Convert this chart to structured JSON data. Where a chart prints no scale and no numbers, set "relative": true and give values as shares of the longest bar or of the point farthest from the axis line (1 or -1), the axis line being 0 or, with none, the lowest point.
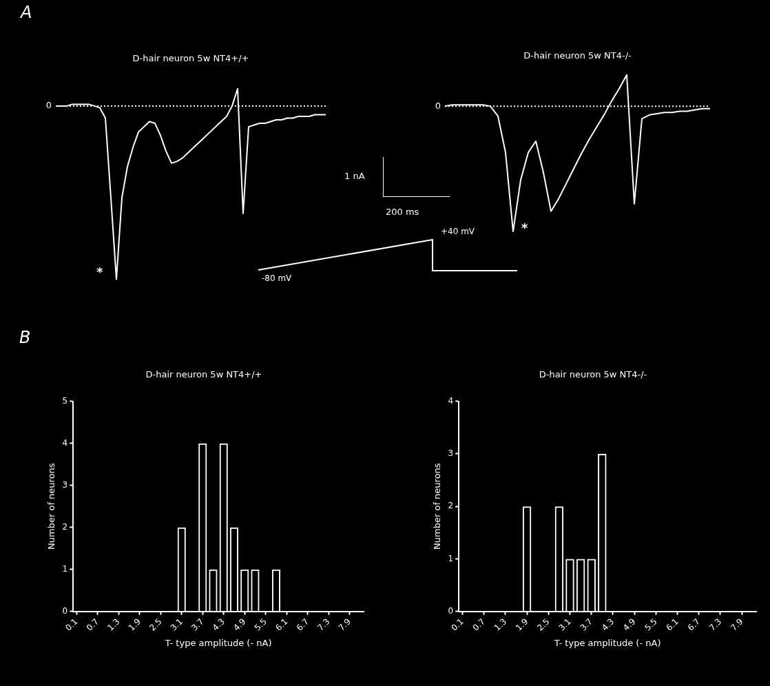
{
  "chart_data": [
    {
      "type": "line",
      "title": "D-hair neuron 5w NT4+/+",
      "relative": true,
      "marker": "none",
      "line_style": "solid",
      "color": "#ffffff",
      "categories": [
        null,
        null,
        null,
        null,
        null,
        null,
        null,
        null,
        null,
        null,
        null,
        null,
        null,
        null,
        null,
        null,
        null,
        null,
        null,
        null,
        null,
        null,
        null,
        null,
        null,
        null,
        null,
        null,
        null,
        null,
        null,
        null,
        null,
        null,
        null,
        null,
        null,
        null,
        null,
        null,
        null,
        null,
        null,
        null,
        null,
        null,
        null,
        null,
        null,
        null
      ],
      "values": [
        0,
        0,
        0,
        0.01,
        0.01,
        0.01,
        0.01,
        0,
        -0.01,
        -0.07,
        -0.53,
        -1,
        -0.53,
        -0.35,
        -0.24,
        -0.15,
        -0.12,
        -0.09,
        -0.1,
        -0.17,
        -0.26,
        -0.33,
        -0.32,
        -0.3,
        -0.27,
        -0.24,
        -0.21,
        -0.18,
        -0.15,
        -0.12,
        -0.09,
        -0.06,
        0,
        0.1,
        -0.62,
        -0.12,
        -0.11,
        -0.1,
        -0.1,
        -0.09,
        -0.08,
        -0.08,
        -0.07,
        -0.07,
        -0.06,
        -0.06,
        -0.06,
        -0.05,
        -0.05,
        -0.05
      ],
      "ref_lines": [
        {
          "axis": "y",
          "value": 0,
          "label": "0",
          "line_style": "dotted",
          "color": "#ffffff"
        }
      ],
      "annotations": [
        "A",
        "*"
      ]
    },
    {
      "type": "line",
      "title": "D-hair neuron 5w NT4-/-",
      "relative": true,
      "marker": "none",
      "line_style": "solid",
      "color": "#ffffff",
      "categories": [
        null,
        null,
        null,
        null,
        null,
        null,
        null,
        null,
        null,
        null,
        null,
        null,
        null,
        null,
        null,
        null,
        null,
        null,
        null,
        null,
        null,
        null,
        null,
        null,
        null,
        null,
        null,
        null,
        null,
        null,
        null,
        null,
        null,
        null,
        null,
        null
      ],
      "values": [
        0,
        0.01,
        0.01,
        0.01,
        0.01,
        0.01,
        0,
        -0.08,
        -0.37,
        -1,
        -0.59,
        -0.37,
        -0.28,
        -0.53,
        -0.84,
        -0.74,
        -0.62,
        -0.5,
        -0.38,
        -0.27,
        -0.17,
        -0.07,
        0.04,
        0.14,
        0.25,
        -0.78,
        -0.1,
        -0.07,
        -0.06,
        -0.05,
        -0.05,
        -0.04,
        -0.04,
        -0.03,
        -0.02,
        -0.02
      ],
      "ref_lines": [
        {
          "axis": "y",
          "value": 0,
          "label": "0",
          "line_style": "dotted",
          "color": "#ffffff"
        }
      ],
      "annotations": [
        "1 nA",
        "200 ms",
        "*"
      ]
    },
    {
      "type": "other",
      "annotations": [
        "-80 mV",
        "+40 mV"
      ]
    },
    {
      "type": "bar",
      "title": "D-hair neuron 5w NT4+/+",
      "xlabel": "T- type amplitude (- nA)",
      "ylabel": "Number of neurons",
      "color": "#ffffff",
      "x": [
        3.1,
        3.7,
        4.0,
        4.3,
        4.6,
        4.9,
        5.2,
        5.8
      ],
      "values": [
        2,
        4,
        1,
        4,
        2,
        1,
        1,
        1
      ],
      "xlim": [
        0,
        8.3
      ],
      "xticks": [
        0.1,
        0.7,
        1.3,
        1.9,
        2.5,
        3.1,
        3.7,
        4.3,
        4.9,
        5.5,
        6.1,
        6.7,
        7.3,
        7.9
      ],
      "ylim": [
        0,
        5
      ],
      "yticks": [
        0,
        1,
        2,
        3,
        4,
        5
      ],
      "annotations": [
        "B"
      ]
    },
    {
      "type": "bar",
      "title": "D-hair neuron 5w NT4-/-",
      "xlabel": "T- type amplitude (- nA)",
      "ylabel": "Number of neurons",
      "color": "#ffffff",
      "x": [
        1.9,
        2.8,
        3.1,
        3.4,
        3.7,
        4.0
      ],
      "values": [
        2,
        2,
        1,
        1,
        1,
        3
      ],
      "xlim": [
        0,
        8.3
      ],
      "xticks": [
        0.1,
        0.7,
        1.3,
        1.9,
        2.5,
        3.1,
        3.7,
        4.3,
        4.9,
        5.5,
        6.1,
        6.7,
        7.3,
        7.9
      ],
      "ylim": [
        0,
        4
      ],
      "yticks": [
        0,
        1,
        2,
        3,
        4
      ]
    }
  ]
}
